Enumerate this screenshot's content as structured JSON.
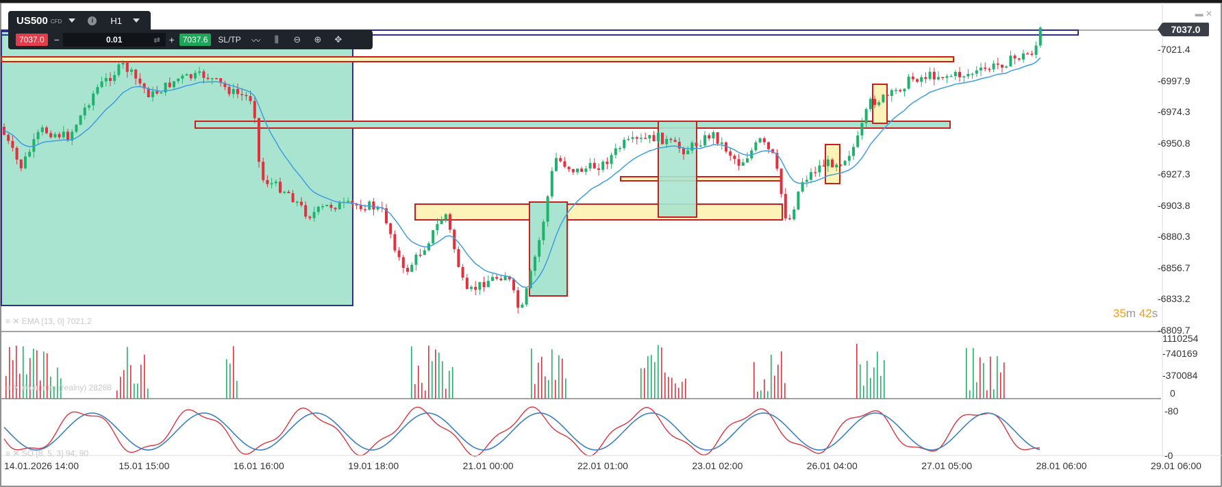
{
  "toolbar": {
    "symbol": "US500",
    "symbol_type": "CFD",
    "timeframe": "H1",
    "sell_price": "7037.0",
    "quantity": "0.01",
    "buy_price": "7037.6",
    "sltp_label": "SL/TP",
    "minus": "−",
    "plus": "+",
    "info": "i"
  },
  "price_axis": {
    "labels": [
      "7021.4",
      "6997.9",
      "6974.3",
      "6950.8",
      "6927.3",
      "6903.8",
      "6880.3",
      "6856.7",
      "6833.2",
      "6809.7"
    ],
    "current_price": "7037.0"
  },
  "volume_axis": {
    "labels": [
      "1110254",
      "740169",
      "370084",
      "0"
    ]
  },
  "stoch_axis": {
    "labels": [
      "80",
      "0"
    ]
  },
  "time_axis": {
    "labels": [
      "14.01.2026 14:00",
      "15.01 15:00",
      "16.01 16:00",
      "19.01 18:00",
      "21.01 00:00",
      "22.01 01:00",
      "23.01 02:00",
      "26.01 04:00",
      "27.01 05:00",
      "28.01 06:00",
      "29.01 06:00"
    ]
  },
  "indicators": {
    "ema_label": "EMA [13, 0] 7021.2",
    "volume_label": "Wolumen (realny) 28288",
    "stoch_label": "SO [8, 5, 3] 94, 90"
  },
  "timer": {
    "minutes": "35",
    "m_unit": "m",
    "seconds": "42",
    "s_unit": "s"
  },
  "colors": {
    "up": "#20b26c",
    "down": "#e0313f",
    "ema": "#3d9de0",
    "zone_red": "#c81e1e",
    "zone_fill_green": "#a8e4cf",
    "zone_fill_yellow": "#fdf3b8",
    "line_blue": "#2a2f8e"
  },
  "chart_data": {
    "type": "candlestick",
    "y_range": [
      6809.7,
      7045.0
    ],
    "note_visible": "",
    "ohlc_series": "synthetic-approximation"
  }
}
